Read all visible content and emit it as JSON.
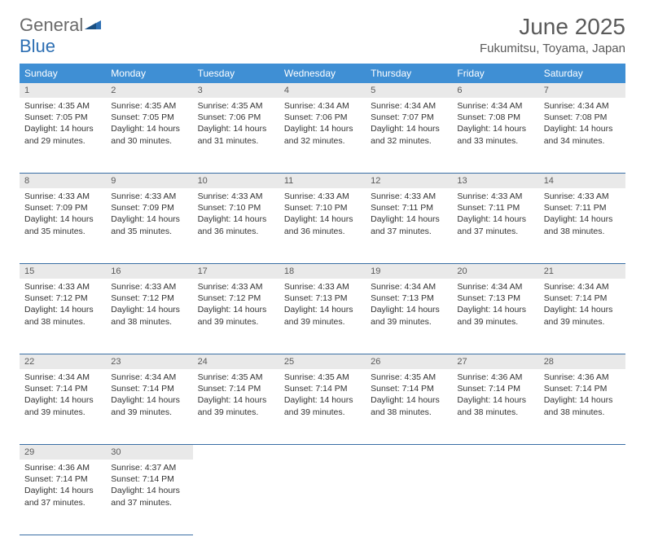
{
  "logo": {
    "word1": "General",
    "word2": "Blue"
  },
  "title": "June 2025",
  "location": "Fukumitsu, Toyama, Japan",
  "colors": {
    "header_bg": "#3f8fd4",
    "header_text": "#ffffff",
    "daynum_bg": "#e9e9e9",
    "rule": "#3a6fa5",
    "logo_gray": "#6a6a6a",
    "logo_blue": "#2d6fb3"
  },
  "weekdays": [
    "Sunday",
    "Monday",
    "Tuesday",
    "Wednesday",
    "Thursday",
    "Friday",
    "Saturday"
  ],
  "weeks": [
    [
      {
        "n": "1",
        "sr": "4:35 AM",
        "ss": "7:05 PM",
        "dl": "14 hours and 29 minutes."
      },
      {
        "n": "2",
        "sr": "4:35 AM",
        "ss": "7:05 PM",
        "dl": "14 hours and 30 minutes."
      },
      {
        "n": "3",
        "sr": "4:35 AM",
        "ss": "7:06 PM",
        "dl": "14 hours and 31 minutes."
      },
      {
        "n": "4",
        "sr": "4:34 AM",
        "ss": "7:06 PM",
        "dl": "14 hours and 32 minutes."
      },
      {
        "n": "5",
        "sr": "4:34 AM",
        "ss": "7:07 PM",
        "dl": "14 hours and 32 minutes."
      },
      {
        "n": "6",
        "sr": "4:34 AM",
        "ss": "7:08 PM",
        "dl": "14 hours and 33 minutes."
      },
      {
        "n": "7",
        "sr": "4:34 AM",
        "ss": "7:08 PM",
        "dl": "14 hours and 34 minutes."
      }
    ],
    [
      {
        "n": "8",
        "sr": "4:33 AM",
        "ss": "7:09 PM",
        "dl": "14 hours and 35 minutes."
      },
      {
        "n": "9",
        "sr": "4:33 AM",
        "ss": "7:09 PM",
        "dl": "14 hours and 35 minutes."
      },
      {
        "n": "10",
        "sr": "4:33 AM",
        "ss": "7:10 PM",
        "dl": "14 hours and 36 minutes."
      },
      {
        "n": "11",
        "sr": "4:33 AM",
        "ss": "7:10 PM",
        "dl": "14 hours and 36 minutes."
      },
      {
        "n": "12",
        "sr": "4:33 AM",
        "ss": "7:11 PM",
        "dl": "14 hours and 37 minutes."
      },
      {
        "n": "13",
        "sr": "4:33 AM",
        "ss": "7:11 PM",
        "dl": "14 hours and 37 minutes."
      },
      {
        "n": "14",
        "sr": "4:33 AM",
        "ss": "7:11 PM",
        "dl": "14 hours and 38 minutes."
      }
    ],
    [
      {
        "n": "15",
        "sr": "4:33 AM",
        "ss": "7:12 PM",
        "dl": "14 hours and 38 minutes."
      },
      {
        "n": "16",
        "sr": "4:33 AM",
        "ss": "7:12 PM",
        "dl": "14 hours and 38 minutes."
      },
      {
        "n": "17",
        "sr": "4:33 AM",
        "ss": "7:12 PM",
        "dl": "14 hours and 39 minutes."
      },
      {
        "n": "18",
        "sr": "4:33 AM",
        "ss": "7:13 PM",
        "dl": "14 hours and 39 minutes."
      },
      {
        "n": "19",
        "sr": "4:34 AM",
        "ss": "7:13 PM",
        "dl": "14 hours and 39 minutes."
      },
      {
        "n": "20",
        "sr": "4:34 AM",
        "ss": "7:13 PM",
        "dl": "14 hours and 39 minutes."
      },
      {
        "n": "21",
        "sr": "4:34 AM",
        "ss": "7:14 PM",
        "dl": "14 hours and 39 minutes."
      }
    ],
    [
      {
        "n": "22",
        "sr": "4:34 AM",
        "ss": "7:14 PM",
        "dl": "14 hours and 39 minutes."
      },
      {
        "n": "23",
        "sr": "4:34 AM",
        "ss": "7:14 PM",
        "dl": "14 hours and 39 minutes."
      },
      {
        "n": "24",
        "sr": "4:35 AM",
        "ss": "7:14 PM",
        "dl": "14 hours and 39 minutes."
      },
      {
        "n": "25",
        "sr": "4:35 AM",
        "ss": "7:14 PM",
        "dl": "14 hours and 39 minutes."
      },
      {
        "n": "26",
        "sr": "4:35 AM",
        "ss": "7:14 PM",
        "dl": "14 hours and 38 minutes."
      },
      {
        "n": "27",
        "sr": "4:36 AM",
        "ss": "7:14 PM",
        "dl": "14 hours and 38 minutes."
      },
      {
        "n": "28",
        "sr": "4:36 AM",
        "ss": "7:14 PM",
        "dl": "14 hours and 38 minutes."
      }
    ],
    [
      {
        "n": "29",
        "sr": "4:36 AM",
        "ss": "7:14 PM",
        "dl": "14 hours and 37 minutes."
      },
      {
        "n": "30",
        "sr": "4:37 AM",
        "ss": "7:14 PM",
        "dl": "14 hours and 37 minutes."
      },
      null,
      null,
      null,
      null,
      null
    ]
  ],
  "labels": {
    "sunrise": "Sunrise:",
    "sunset": "Sunset:",
    "daylight": "Daylight:"
  }
}
